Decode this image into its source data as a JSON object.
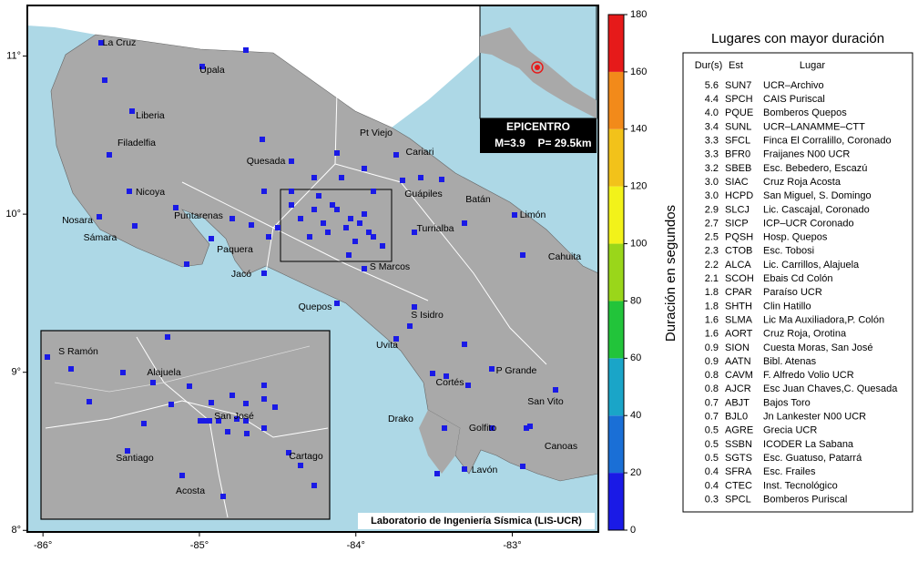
{
  "map": {
    "xlim": [
      -86.1,
      -82.45
    ],
    "ylim": [
      7.99,
      11.32
    ],
    "xticks": [
      {
        "value": -86,
        "label": "-86°"
      },
      {
        "value": -85,
        "label": "-85°"
      },
      {
        "value": -84,
        "label": "-84°"
      },
      {
        "value": -83,
        "label": "-83°"
      }
    ],
    "yticks": [
      {
        "value": 8,
        "label": "8°"
      },
      {
        "value": 9,
        "label": "9°"
      },
      {
        "value": 10,
        "label": "10°"
      },
      {
        "value": 11,
        "label": "11°"
      }
    ],
    "places": [
      "La Cruz",
      "Upala",
      "Liberia",
      "Filadelfia",
      "Nicoya",
      "Nosara",
      "Sámara",
      "Puntarenas",
      "Paquera",
      "Jacó",
      "Quesada",
      "Pt Viejo",
      "Cariari",
      "Guápiles",
      "Batán",
      "Limón",
      "Turrialba",
      "Cahuita",
      "S Marcos",
      "Quepos",
      "S Isidro",
      "Uvita",
      "P Grande",
      "Cortés",
      "San Vito",
      "Drako",
      "Golfito",
      "Canoas",
      "Lavón"
    ],
    "inset_places": [
      "S Ramón",
      "Alajuela",
      "San José",
      "Santiago",
      "Cartago",
      "Acosta"
    ],
    "epicentro": {
      "title": "EPICENTRO",
      "magnitude": "M=3.9",
      "depth": "P= 29.5km"
    },
    "credit": "Laboratorio de Ingeniería Sísmica (LIS-UCR)"
  },
  "colorbar": {
    "label": "Duración en segundos",
    "lim": [
      0,
      180
    ],
    "ticks": [
      0,
      20,
      40,
      60,
      80,
      100,
      120,
      140,
      160,
      180
    ],
    "colors": [
      "#1a1ae6",
      "#1a6fd6",
      "#1aa5c8",
      "#22c43a",
      "#9ad61a",
      "#f2f21a",
      "#f2c21a",
      "#f28a1a",
      "#e61a1a"
    ]
  },
  "table": {
    "title": "Lugares con mayor duración",
    "columns": [
      "Dur(s)",
      "Est",
      "Lugar"
    ],
    "rows": [
      [
        "5.6",
        "SUN7",
        "UCR–Archivo"
      ],
      [
        "4.4",
        "SPCH",
        "CAIS Puriscal"
      ],
      [
        "4.0",
        "PQUE",
        "Bomberos Quepos"
      ],
      [
        "3.4",
        "SUNL",
        "UCR–LANAMME–CTT"
      ],
      [
        "3.3",
        "SFCL",
        "Finca El Corralillo, Coronado"
      ],
      [
        "3.3",
        "BFR0",
        "Fraijanes N00 UCR"
      ],
      [
        "3.2",
        "SBEB",
        "Esc. Bebedero, Escazú"
      ],
      [
        "3.0",
        "SIAC",
        "Cruz Roja Acosta"
      ],
      [
        "3.0",
        "HCPD",
        "San Miguel, S. Domingo"
      ],
      [
        "2.9",
        "SLCJ",
        "Lic. Cascajal, Coronado"
      ],
      [
        "2.7",
        "SICP",
        "ICP–UCR Coronado"
      ],
      [
        "2.5",
        "PQSH",
        "Hosp. Quepos"
      ],
      [
        "2.3",
        "CTOB",
        "Esc. Tobosi"
      ],
      [
        "2.2",
        "ALCA",
        "Lic. Carrillos, Alajuela"
      ],
      [
        "2.1",
        "SCOH",
        "Ebais Cd Colón"
      ],
      [
        "1.8",
        "CPAR",
        "Paraíso UCR"
      ],
      [
        "1.8",
        "SHTH",
        "Clin Hatillo"
      ],
      [
        "1.6",
        "SLMA",
        "Lic Ma Auxiliadora,P. Colón"
      ],
      [
        "1.6",
        "AORT",
        "Cruz Roja, Orotina"
      ],
      [
        "0.9",
        "SION",
        "Cuesta Moras, San José"
      ],
      [
        "0.9",
        "AATN",
        "Bibl. Atenas"
      ],
      [
        "0.8",
        "CAVM",
        "F. Alfredo Volio UCR"
      ],
      [
        "0.8",
        "AJCR",
        "Esc Juan Chaves,C. Quesada"
      ],
      [
        "0.7",
        "ABJT",
        "Bajos Toro"
      ],
      [
        "0.7",
        "BJL0",
        "Jn Lankester N00 UCR"
      ],
      [
        "0.5",
        "AGRE",
        "Grecia UCR"
      ],
      [
        "0.5",
        "SSBN",
        "ICODER La Sabana"
      ],
      [
        "0.5",
        "SGTS",
        "Esc. Guatuso, Patarrá"
      ],
      [
        "0.4",
        "SFRA",
        "Esc. Frailes"
      ],
      [
        "0.4",
        "CTEC",
        "Inst. Tecnológico"
      ],
      [
        "0.3",
        "SPCL",
        "Bomberos Puriscal"
      ]
    ]
  }
}
